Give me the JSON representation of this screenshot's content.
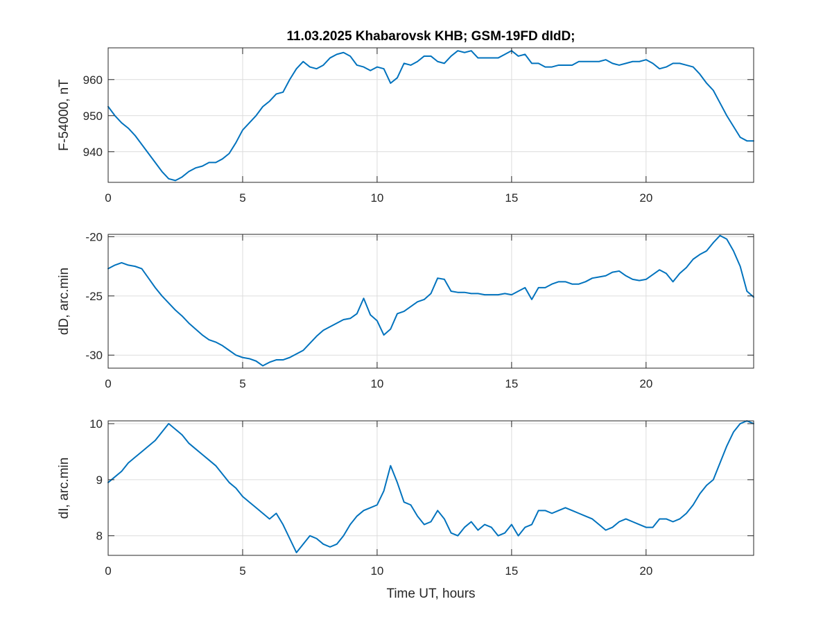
{
  "chart_data": {
    "type": "line",
    "title": "11.03.2025  Khabarovsk KHB; GSM-19FD dIdD;",
    "xlabel": "Time UT, hours",
    "xlim": [
      0,
      24
    ],
    "x_ticks": [
      0,
      5,
      10,
      15,
      20
    ],
    "grid": true,
    "line_color": "#0072BD",
    "subplots": [
      {
        "id": "F",
        "ylabel": "F-54000, nT",
        "ylim": [
          931.5,
          968.8
        ],
        "y_ticks": [
          940,
          950,
          960
        ],
        "series": [
          {
            "x": [
              0,
              0.25,
              0.5,
              0.75,
              1.0,
              1.25,
              1.5,
              1.75,
              2.0,
              2.25,
              2.5,
              2.75,
              3.0,
              3.25,
              3.5,
              3.75,
              4.0,
              4.25,
              4.5,
              4.75,
              5.0,
              5.25,
              5.5,
              5.75,
              6.0,
              6.25,
              6.5,
              6.75,
              7.0,
              7.25,
              7.5,
              7.75,
              8.0,
              8.25,
              8.5,
              8.75,
              9.0,
              9.25,
              9.5,
              9.75,
              10.0,
              10.25,
              10.5,
              10.75,
              11.0,
              11.25,
              11.5,
              11.75,
              12.0,
              12.25,
              12.5,
              12.75,
              13.0,
              13.25,
              13.5,
              13.75,
              14.0,
              14.25,
              14.5,
              14.75,
              15.0,
              15.25,
              15.5,
              15.75,
              16.0,
              16.25,
              16.5,
              16.75,
              17.0,
              17.25,
              17.5,
              17.75,
              18.0,
              18.25,
              18.5,
              18.75,
              19.0,
              19.25,
              19.5,
              19.75,
              20.0,
              20.25,
              20.5,
              20.75,
              21.0,
              21.25,
              21.5,
              21.75,
              22.0,
              22.25,
              22.5,
              22.75,
              23.0,
              23.25,
              23.5,
              23.75,
              24.0
            ],
            "y": [
              952.5,
              950.0,
              948.0,
              946.5,
              944.5,
              942.0,
              939.5,
              937.0,
              934.5,
              932.5,
              932.0,
              933.0,
              934.5,
              935.5,
              936.0,
              937.0,
              937.0,
              938.0,
              939.5,
              942.5,
              946.0,
              948.0,
              950.0,
              952.5,
              954.0,
              956.0,
              956.5,
              960.0,
              963.0,
              965.0,
              963.5,
              963.0,
              964.0,
              966.0,
              967.0,
              967.5,
              966.5,
              964.0,
              963.5,
              962.5,
              963.5,
              963.0,
              959.0,
              960.5,
              964.5,
              964.0,
              965.0,
              966.5,
              966.5,
              965.0,
              964.5,
              966.5,
              968.0,
              967.5,
              968.0,
              966.0,
              966.0,
              966.0,
              966.0,
              967.0,
              968.0,
              966.5,
              967.0,
              964.5,
              964.5,
              963.5,
              963.5,
              964.0,
              964.0,
              964.0,
              965.0,
              965.0,
              965.0,
              965.0,
              965.5,
              964.5,
              964.0,
              964.5,
              965.0,
              965.0,
              965.5,
              964.5,
              963.0,
              963.5,
              964.5,
              964.5,
              964.0,
              963.5,
              961.5,
              959.0,
              957.0,
              953.5,
              950.0,
              947.0,
              944.0,
              943.0,
              943.0
            ]
          }
        ]
      },
      {
        "id": "dD",
        "ylabel": "dD, arc.min",
        "ylim": [
          -31.1,
          -19.8
        ],
        "y_ticks": [
          -30,
          -25,
          -20
        ],
        "series": [
          {
            "x": [
              0,
              0.25,
              0.5,
              0.75,
              1.0,
              1.25,
              1.5,
              1.75,
              2.0,
              2.25,
              2.5,
              2.75,
              3.0,
              3.25,
              3.5,
              3.75,
              4.0,
              4.25,
              4.5,
              4.75,
              5.0,
              5.25,
              5.5,
              5.75,
              6.0,
              6.25,
              6.5,
              6.75,
              7.0,
              7.25,
              7.5,
              7.75,
              8.0,
              8.25,
              8.5,
              8.75,
              9.0,
              9.25,
              9.5,
              9.75,
              10.0,
              10.25,
              10.5,
              10.75,
              11.0,
              11.25,
              11.5,
              11.75,
              12.0,
              12.25,
              12.5,
              12.75,
              13.0,
              13.25,
              13.5,
              13.75,
              14.0,
              14.25,
              14.5,
              14.75,
              15.0,
              15.25,
              15.5,
              15.75,
              16.0,
              16.25,
              16.5,
              16.75,
              17.0,
              17.25,
              17.5,
              17.75,
              18.0,
              18.25,
              18.5,
              18.75,
              19.0,
              19.25,
              19.5,
              19.75,
              20.0,
              20.25,
              20.5,
              20.75,
              21.0,
              21.25,
              21.5,
              21.75,
              22.0,
              22.25,
              22.5,
              22.75,
              23.0,
              23.25,
              23.5,
              23.75,
              24.0
            ],
            "y": [
              -22.7,
              -22.4,
              -22.2,
              -22.4,
              -22.5,
              -22.7,
              -23.5,
              -24.3,
              -25.0,
              -25.6,
              -26.2,
              -26.7,
              -27.3,
              -27.8,
              -28.3,
              -28.7,
              -28.9,
              -29.2,
              -29.6,
              -30.0,
              -30.2,
              -30.3,
              -30.5,
              -30.9,
              -30.6,
              -30.4,
              -30.4,
              -30.2,
              -29.9,
              -29.6,
              -29.0,
              -28.4,
              -27.9,
              -27.6,
              -27.3,
              -27.0,
              -26.9,
              -26.5,
              -25.2,
              -26.6,
              -27.1,
              -28.3,
              -27.8,
              -26.5,
              -26.3,
              -25.9,
              -25.5,
              -25.3,
              -24.8,
              -23.5,
              -23.6,
              -24.6,
              -24.7,
              -24.7,
              -24.8,
              -24.8,
              -24.9,
              -24.9,
              -24.9,
              -24.8,
              -24.9,
              -24.6,
              -24.3,
              -25.3,
              -24.3,
              -24.3,
              -24.0,
              -23.8,
              -23.8,
              -24.0,
              -24.0,
              -23.8,
              -23.5,
              -23.4,
              -23.3,
              -23.0,
              -22.9,
              -23.3,
              -23.6,
              -23.7,
              -23.6,
              -23.2,
              -22.8,
              -23.1,
              -23.8,
              -23.1,
              -22.6,
              -21.9,
              -21.5,
              -21.2,
              -20.5,
              -19.9,
              -20.2,
              -21.2,
              -22.5,
              -24.6,
              -25.1
            ]
          }
        ]
      },
      {
        "id": "dI",
        "ylabel": "dI, arc.min",
        "ylim": [
          7.65,
          10.05
        ],
        "y_ticks": [
          8,
          9,
          10
        ],
        "series": [
          {
            "x": [
              0,
              0.25,
              0.5,
              0.75,
              1.0,
              1.25,
              1.5,
              1.75,
              2.0,
              2.25,
              2.5,
              2.75,
              3.0,
              3.25,
              3.5,
              3.75,
              4.0,
              4.25,
              4.5,
              4.75,
              5.0,
              5.25,
              5.5,
              5.75,
              6.0,
              6.25,
              6.5,
              6.75,
              7.0,
              7.25,
              7.5,
              7.75,
              8.0,
              8.25,
              8.5,
              8.75,
              9.0,
              9.25,
              9.5,
              9.75,
              10.0,
              10.25,
              10.5,
              10.75,
              11.0,
              11.25,
              11.5,
              11.75,
              12.0,
              12.25,
              12.5,
              12.75,
              13.0,
              13.25,
              13.5,
              13.75,
              14.0,
              14.25,
              14.5,
              14.75,
              15.0,
              15.25,
              15.5,
              15.75,
              16.0,
              16.25,
              16.5,
              16.75,
              17.0,
              17.25,
              17.5,
              17.75,
              18.0,
              18.25,
              18.5,
              18.75,
              19.0,
              19.25,
              19.5,
              19.75,
              20.0,
              20.25,
              20.5,
              20.75,
              21.0,
              21.25,
              21.5,
              21.75,
              22.0,
              22.25,
              22.5,
              22.75,
              23.0,
              23.25,
              23.5,
              23.75,
              24.0
            ],
            "y": [
              8.95,
              9.05,
              9.15,
              9.3,
              9.4,
              9.5,
              9.6,
              9.7,
              9.85,
              10.0,
              9.9,
              9.8,
              9.65,
              9.55,
              9.45,
              9.35,
              9.25,
              9.1,
              8.95,
              8.85,
              8.7,
              8.6,
              8.5,
              8.4,
              8.3,
              8.4,
              8.2,
              7.95,
              7.7,
              7.85,
              8.0,
              7.95,
              7.85,
              7.8,
              7.85,
              8.0,
              8.2,
              8.35,
              8.45,
              8.5,
              8.55,
              8.8,
              9.25,
              8.95,
              8.6,
              8.55,
              8.35,
              8.2,
              8.25,
              8.45,
              8.3,
              8.05,
              8.0,
              8.15,
              8.25,
              8.1,
              8.2,
              8.15,
              8.0,
              8.05,
              8.2,
              8.0,
              8.15,
              8.2,
              8.45,
              8.45,
              8.4,
              8.45,
              8.5,
              8.45,
              8.4,
              8.35,
              8.3,
              8.2,
              8.1,
              8.15,
              8.25,
              8.3,
              8.25,
              8.2,
              8.15,
              8.15,
              8.3,
              8.3,
              8.25,
              8.3,
              8.4,
              8.55,
              8.75,
              8.9,
              9.0,
              9.3,
              9.6,
              9.85,
              10.0,
              10.05,
              10.0
            ]
          }
        ]
      }
    ]
  }
}
